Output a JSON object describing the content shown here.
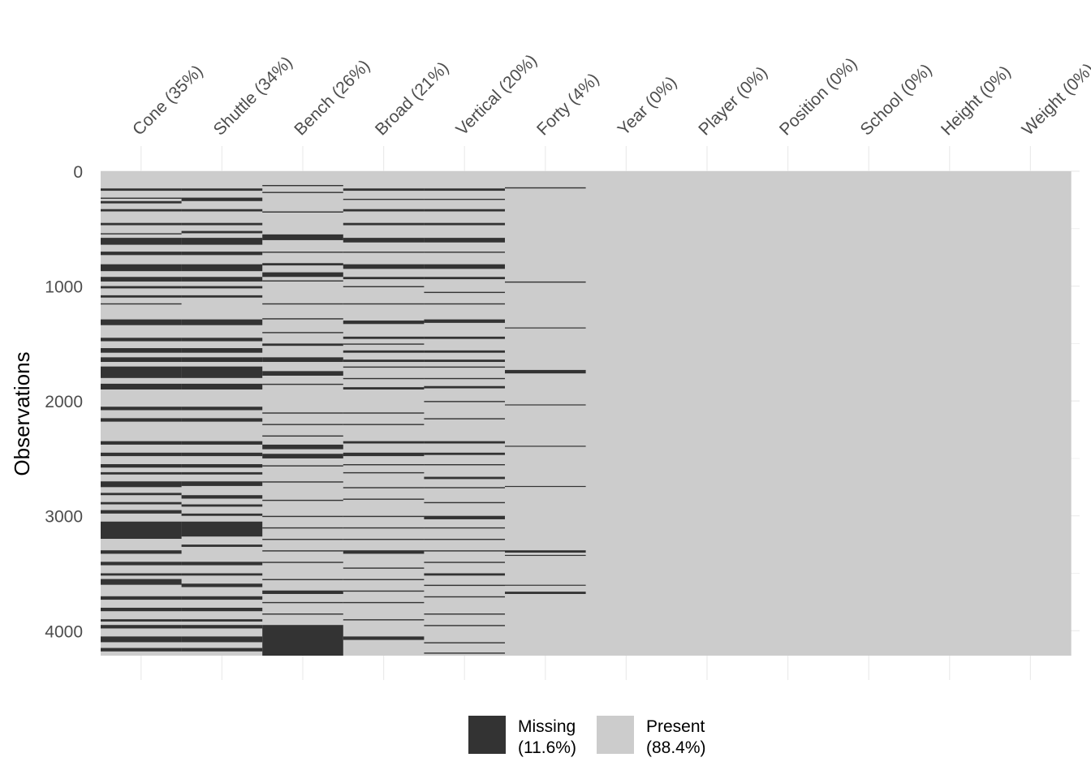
{
  "chart_data": {
    "type": "heatmap",
    "ylabel": "Observations",
    "n_observations": 4217,
    "y_ticks": [
      0,
      1000,
      2000,
      3000,
      4000
    ],
    "y_tick_labels": [
      "0",
      "1000",
      "2000",
      "3000",
      "4000"
    ],
    "y_direction": "top-to-bottom",
    "columns": [
      {
        "name": "Cone",
        "label": "Cone (35%)",
        "missing_pct": 35,
        "missing_rows": [
          [
            150,
            170
          ],
          [
            230,
            240
          ],
          [
            260,
            280
          ],
          [
            330,
            350
          ],
          [
            450,
            470
          ],
          [
            540,
            550
          ],
          [
            580,
            640
          ],
          [
            700,
            730
          ],
          [
            810,
            870
          ],
          [
            920,
            960
          ],
          [
            1000,
            1020
          ],
          [
            1080,
            1100
          ],
          [
            1150,
            1160
          ],
          [
            1290,
            1340
          ],
          [
            1450,
            1480
          ],
          [
            1540,
            1580
          ],
          [
            1620,
            1660
          ],
          [
            1700,
            1800
          ],
          [
            1850,
            1900
          ],
          [
            2050,
            2080
          ],
          [
            2150,
            2180
          ],
          [
            2350,
            2380
          ],
          [
            2450,
            2480
          ],
          [
            2550,
            2580
          ],
          [
            2620,
            2640
          ],
          [
            2700,
            2750
          ],
          [
            2800,
            2820
          ],
          [
            2880,
            2900
          ],
          [
            2950,
            2980
          ],
          [
            3050,
            3200
          ],
          [
            3300,
            3330
          ],
          [
            3400,
            3430
          ],
          [
            3500,
            3520
          ],
          [
            3550,
            3600
          ],
          [
            3700,
            3730
          ],
          [
            3800,
            3830
          ],
          [
            3900,
            3920
          ],
          [
            3950,
            3980
          ],
          [
            4050,
            4100
          ],
          [
            4150,
            4180
          ]
        ]
      },
      {
        "name": "Shuttle",
        "label": "Shuttle (34%)",
        "missing_pct": 34,
        "missing_rows": [
          [
            150,
            170
          ],
          [
            230,
            260
          ],
          [
            330,
            350
          ],
          [
            450,
            470
          ],
          [
            520,
            540
          ],
          [
            580,
            640
          ],
          [
            700,
            730
          ],
          [
            810,
            870
          ],
          [
            920,
            960
          ],
          [
            1000,
            1020
          ],
          [
            1080,
            1100
          ],
          [
            1290,
            1340
          ],
          [
            1450,
            1480
          ],
          [
            1540,
            1580
          ],
          [
            1620,
            1660
          ],
          [
            1700,
            1800
          ],
          [
            1850,
            1900
          ],
          [
            2050,
            2080
          ],
          [
            2150,
            2180
          ],
          [
            2350,
            2380
          ],
          [
            2450,
            2480
          ],
          [
            2550,
            2580
          ],
          [
            2620,
            2640
          ],
          [
            2700,
            2740
          ],
          [
            2820,
            2850
          ],
          [
            2900,
            2920
          ],
          [
            2980,
            3000
          ],
          [
            3050,
            3180
          ],
          [
            3250,
            3270
          ],
          [
            3400,
            3430
          ],
          [
            3500,
            3520
          ],
          [
            3590,
            3620
          ],
          [
            3700,
            3730
          ],
          [
            3800,
            3830
          ],
          [
            3900,
            3920
          ],
          [
            3950,
            3980
          ],
          [
            4050,
            4100
          ],
          [
            4150,
            4180
          ]
        ]
      },
      {
        "name": "Bench",
        "label": "Bench (26%)",
        "missing_pct": 26,
        "missing_rows": [
          [
            120,
            130
          ],
          [
            180,
            190
          ],
          [
            350,
            360
          ],
          [
            550,
            600
          ],
          [
            700,
            710
          ],
          [
            800,
            820
          ],
          [
            880,
            920
          ],
          [
            950,
            960
          ],
          [
            1150,
            1160
          ],
          [
            1280,
            1290
          ],
          [
            1400,
            1410
          ],
          [
            1500,
            1520
          ],
          [
            1620,
            1660
          ],
          [
            1740,
            1780
          ],
          [
            1850,
            1860
          ],
          [
            2100,
            2110
          ],
          [
            2200,
            2210
          ],
          [
            2300,
            2310
          ],
          [
            2380,
            2420
          ],
          [
            2460,
            2500
          ],
          [
            2560,
            2570
          ],
          [
            2700,
            2710
          ],
          [
            2860,
            2870
          ],
          [
            3000,
            3010
          ],
          [
            3100,
            3110
          ],
          [
            3200,
            3210
          ],
          [
            3300,
            3310
          ],
          [
            3400,
            3410
          ],
          [
            3550,
            3560
          ],
          [
            3650,
            3680
          ],
          [
            3750,
            3760
          ],
          [
            3850,
            3860
          ],
          [
            3950,
            4217
          ]
        ]
      },
      {
        "name": "Broad",
        "label": "Broad (21%)",
        "missing_pct": 21,
        "missing_rows": [
          [
            150,
            170
          ],
          [
            240,
            250
          ],
          [
            330,
            350
          ],
          [
            450,
            470
          ],
          [
            580,
            620
          ],
          [
            700,
            710
          ],
          [
            810,
            850
          ],
          [
            920,
            940
          ],
          [
            1000,
            1010
          ],
          [
            1150,
            1160
          ],
          [
            1300,
            1330
          ],
          [
            1440,
            1460
          ],
          [
            1500,
            1510
          ],
          [
            1560,
            1580
          ],
          [
            1640,
            1660
          ],
          [
            1700,
            1710
          ],
          [
            1800,
            1810
          ],
          [
            1880,
            1900
          ],
          [
            2100,
            2110
          ],
          [
            2200,
            2210
          ],
          [
            2350,
            2370
          ],
          [
            2450,
            2480
          ],
          [
            2550,
            2560
          ],
          [
            2620,
            2630
          ],
          [
            2750,
            2760
          ],
          [
            2850,
            2860
          ],
          [
            3000,
            3010
          ],
          [
            3100,
            3110
          ],
          [
            3200,
            3210
          ],
          [
            3300,
            3330
          ],
          [
            3450,
            3460
          ],
          [
            3550,
            3560
          ],
          [
            3650,
            3660
          ],
          [
            3750,
            3760
          ],
          [
            3900,
            3910
          ],
          [
            4050,
            4080
          ]
        ]
      },
      {
        "name": "Vertical",
        "label": "Vertical (20%)",
        "missing_pct": 20,
        "missing_rows": [
          [
            150,
            170
          ],
          [
            240,
            250
          ],
          [
            330,
            350
          ],
          [
            450,
            470
          ],
          [
            580,
            620
          ],
          [
            700,
            710
          ],
          [
            810,
            850
          ],
          [
            920,
            940
          ],
          [
            1050,
            1060
          ],
          [
            1150,
            1160
          ],
          [
            1290,
            1320
          ],
          [
            1440,
            1460
          ],
          [
            1560,
            1580
          ],
          [
            1640,
            1660
          ],
          [
            1700,
            1710
          ],
          [
            1800,
            1810
          ],
          [
            1870,
            1890
          ],
          [
            2000,
            2010
          ],
          [
            2150,
            2160
          ],
          [
            2350,
            2370
          ],
          [
            2450,
            2470
          ],
          [
            2550,
            2560
          ],
          [
            2660,
            2680
          ],
          [
            2750,
            2760
          ],
          [
            2880,
            2890
          ],
          [
            3000,
            3030
          ],
          [
            3100,
            3110
          ],
          [
            3200,
            3210
          ],
          [
            3300,
            3310
          ],
          [
            3400,
            3410
          ],
          [
            3500,
            3520
          ],
          [
            3600,
            3610
          ],
          [
            3700,
            3710
          ],
          [
            3850,
            3860
          ],
          [
            3950,
            3960
          ],
          [
            4100,
            4110
          ],
          [
            4190,
            4200
          ]
        ]
      },
      {
        "name": "Forty",
        "label": "Forty (4%)",
        "missing_pct": 4,
        "missing_rows": [
          [
            140,
            150
          ],
          [
            960,
            970
          ],
          [
            1360,
            1365
          ],
          [
            1730,
            1760
          ],
          [
            2030,
            2035
          ],
          [
            2390,
            2395
          ],
          [
            2740,
            2745
          ],
          [
            3300,
            3320
          ],
          [
            3340,
            3345
          ],
          [
            3600,
            3605
          ],
          [
            3660,
            3680
          ]
        ]
      },
      {
        "name": "Year",
        "label": "Year (0%)",
        "missing_pct": 0,
        "missing_rows": []
      },
      {
        "name": "Player",
        "label": "Player (0%)",
        "missing_pct": 0,
        "missing_rows": []
      },
      {
        "name": "Position",
        "label": "Position (0%)",
        "missing_pct": 0,
        "missing_rows": []
      },
      {
        "name": "School",
        "label": "School (0%)",
        "missing_pct": 0,
        "missing_rows": []
      },
      {
        "name": "Height",
        "label": "Height (0%)",
        "missing_pct": 0,
        "missing_rows": []
      },
      {
        "name": "Weight",
        "label": "Weight (0%)",
        "missing_pct": 0,
        "missing_rows": []
      }
    ],
    "legend": {
      "placement": "bottom",
      "items": [
        {
          "name": "Missing",
          "pct_label": "(11.6%)",
          "color": "#333333"
        },
        {
          "name": "Present",
          "pct_label": "(88.4%)",
          "color": "#cccccc"
        }
      ]
    },
    "colors": {
      "missing": "#333333",
      "present": "#cccccc",
      "grid": "#ebebeb"
    },
    "grid": true
  }
}
